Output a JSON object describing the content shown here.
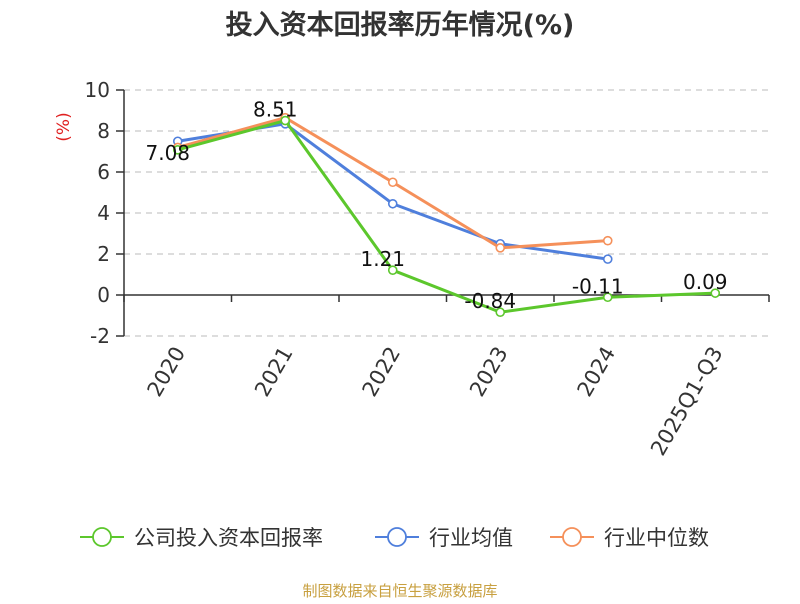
{
  "chart_data": {
    "type": "line",
    "title": "投入资本回报率历年情况(%)",
    "ylabel": "(%)",
    "xlabel": "",
    "categories": [
      "2020",
      "2021",
      "2022",
      "2023",
      "2024",
      "2025Q1-Q3"
    ],
    "ylim": [
      -2,
      10
    ],
    "yticks": [
      -2,
      0,
      2,
      4,
      6,
      8,
      10
    ],
    "grid": true,
    "legend_position": "bottom",
    "series": [
      {
        "name": "公司投入资本回报率",
        "color": "#5cc72c",
        "values": [
          7.08,
          8.51,
          1.21,
          -0.84,
          -0.11,
          0.09
        ],
        "data_labels": [
          "7.08",
          "8.51",
          "1.21",
          "-0.84",
          "-0.11",
          "0.09"
        ]
      },
      {
        "name": "行业均值",
        "color": "#4f7fdc",
        "values": [
          7.5,
          8.35,
          4.45,
          2.5,
          1.75,
          null
        ]
      },
      {
        "name": "行业中位数",
        "color": "#f5905a",
        "values": [
          7.2,
          8.65,
          5.5,
          2.3,
          2.65,
          null
        ]
      }
    ],
    "source": "制图数据来自恒生聚源数据库"
  }
}
